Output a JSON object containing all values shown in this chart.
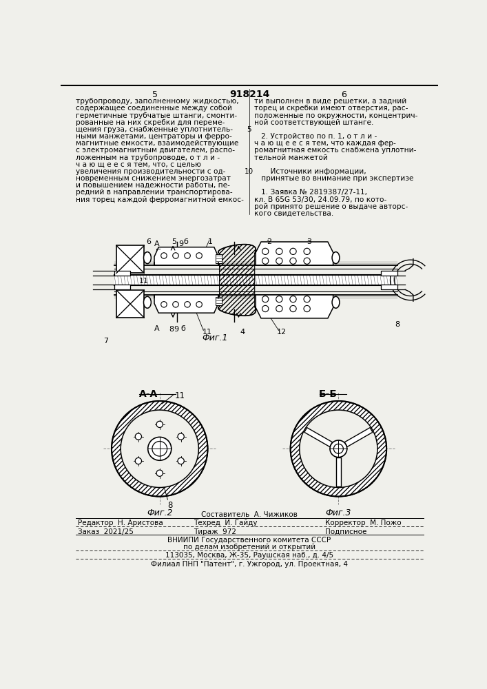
{
  "background_color": "#f0f0eb",
  "patent_number": "918214",
  "col_left": "5",
  "col_right": "6",
  "text_left": [
    "трубопроводу, заполненному жидкостью,",
    "содержащее соединенные между собой",
    "герметичные трубчатые штанги, смонти-",
    "рованные на них скребки для переме-",
    "щения груза, снабженные уплотнитель-",
    "ными манжетами, центраторы и ферро-",
    "магнитные емкости, взаимодействующие",
    "с электромагнитным двигателем, распо-",
    "ложенным на трубопроводе, о т л и -",
    "ч а ю щ е е с я тем, что, с целью",
    "увеличения производительности с од-",
    "новременным снижением энергозатрат",
    "и повышением надежности работы, пе-",
    "редний в направлении транспортирова-",
    "ния торец каждой ферромагнитной емкос-"
  ],
  "text_right": [
    "ти выполнен в виде решетки, а задний",
    "торец и скребки имеют отверстия, рас-",
    "положенные по окружности, концентрич-",
    "ной соответствующей штанге.",
    "",
    "   2. Устройство по п. 1, о т л и -",
    "ч а ю щ е е с я тем, что каждая фер-",
    "ромагнитная емкость снабжена уплотни-",
    "тельной манжетой",
    "",
    "       Источники информации,",
    "   принятые во внимание при экспертизе",
    "",
    "   1. Заявка № 2819387/27-11,",
    "кл. В 65G 53/30, 24.09.79, по кото-",
    "рой принято решение о выдаче авторс-",
    "кого свидетельства."
  ],
  "mid_num_5_row": 4,
  "mid_num_10_row": 10,
  "section_aa": "А-А",
  "section_bb": "Б-Б",
  "fig1_label": "Фиг.1",
  "fig2_label": "Фиг.2",
  "fig3_label": "Фиг.3",
  "footer": [
    "Составитель  А. Чижиков",
    "Редактор  Н. Аристова",
    "Техред  И. Гайду",
    "Корректор  М. Пожо",
    "Заказ  2021/25",
    "Тираж  972",
    "Подписное",
    "ВНИИПИ Государственного комитета СССР",
    "по делам изобретений и открытий",
    "113035, Москва, Ж-35, Раушская наб., д. 4/5",
    "Филиал ПНП \"Патент\", г. Ужгород, ул. Проектная, 4"
  ]
}
